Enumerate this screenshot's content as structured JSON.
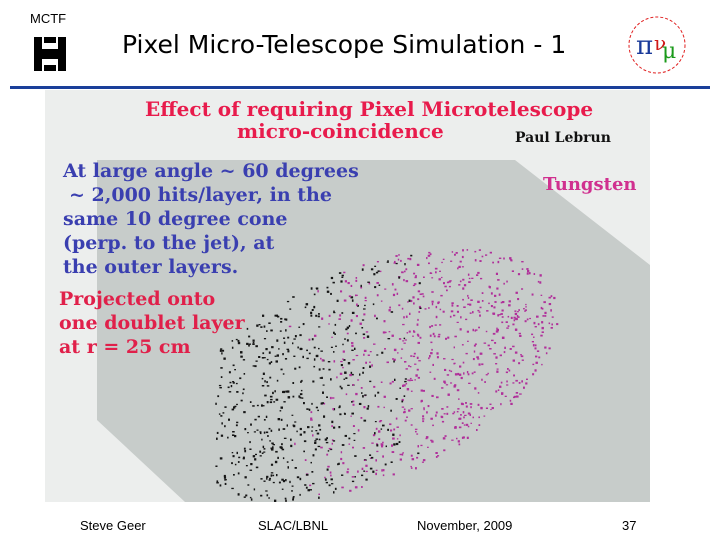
{
  "header": {
    "tag": "MCTF",
    "title": "Pixel Micro-Telescope Simulation - 1"
  },
  "figure": {
    "title_line1": "Effect of requiring Pixel Microtelescope",
    "title_line2": "micro-coincidence",
    "author": "Paul Lebrun",
    "material": "Tungsten",
    "blue_text": [
      "At large angle ~ 60 degrees",
      "~ 2,000 hits/layer, in the",
      "same 10 degree cone",
      "(perp. to the jet), at",
      "the outer layers."
    ],
    "red_text": [
      "Projected onto",
      "one doublet layer",
      "at r = 25 cm"
    ]
  },
  "footer": {
    "author": "Steve Geer",
    "lab": "SLAC/LBNL",
    "date": "November, 2009",
    "page": "37"
  },
  "colors": {
    "rule": "#1a3f9a",
    "title_red": "#e81b4c",
    "blue_text": "#3a3fb0",
    "magenta": "#d0308f"
  }
}
